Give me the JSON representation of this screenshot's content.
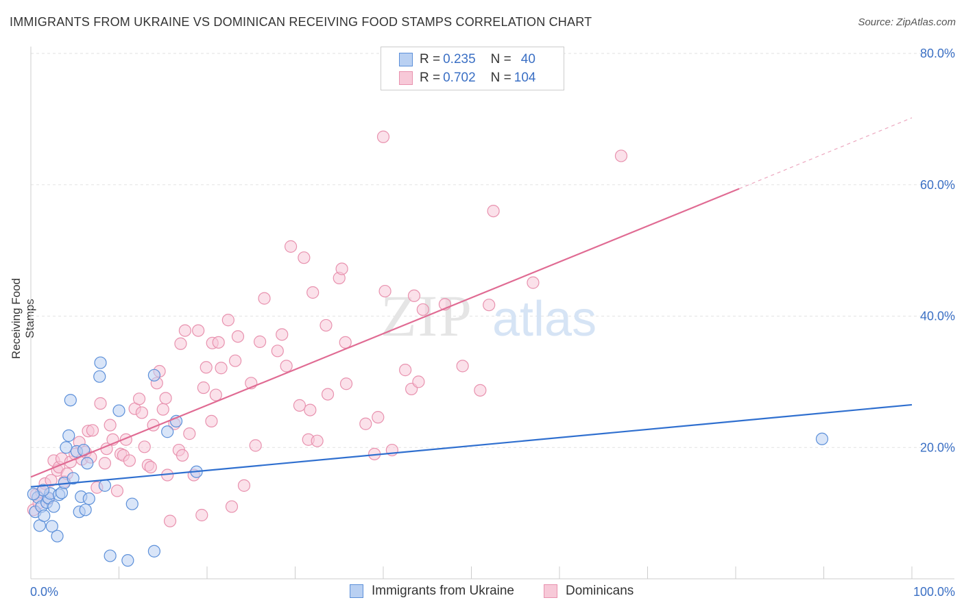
{
  "header": {
    "title": "IMMIGRANTS FROM UKRAINE VS DOMINICAN RECEIVING FOOD STAMPS CORRELATION CHART",
    "source": "Source: ZipAtlas.com"
  },
  "watermark": {
    "zip": "ZIP",
    "atlas": "atlas"
  },
  "colors": {
    "blue": "#5b8fd9",
    "blue_fill": "#b9d0f2",
    "blue_line": "#2f6fcf",
    "pink": "#e891ae",
    "pink_fill": "#f7c9d8",
    "pink_line": "#e06b93",
    "tick_text": "#3a6fc4"
  },
  "legend": {
    "rows": [
      {
        "r_label": "R = ",
        "r_value": "0.235",
        "n_label": "N = ",
        "n_value": "40"
      },
      {
        "r_label": "R = ",
        "r_value": "0.702",
        "n_label": "N = ",
        "n_value": "104"
      }
    ]
  },
  "bottom_legend": {
    "items": [
      "Immigrants from Ukraine",
      "Dominicans"
    ]
  },
  "chart_data": {
    "type": "scatter",
    "title": "IMMIGRANTS FROM UKRAINE VS DOMINICAN RECEIVING FOOD STAMPS CORRELATION CHART",
    "xlabel": "",
    "ylabel": "Receiving Food Stamps",
    "xlim": [
      0,
      100
    ],
    "ylim": [
      0,
      80
    ],
    "x_tick_labels": [
      "0.0%",
      "100.0%"
    ],
    "y_tick_labels": [
      "20.0%",
      "40.0%",
      "60.0%",
      "80.0%"
    ],
    "y_ticks": [
      20,
      40,
      60,
      80
    ],
    "series": [
      {
        "name": "Immigrants from Ukraine",
        "r": 0.235,
        "n": 40,
        "trend": {
          "x0": 0,
          "y0": 14.0,
          "x1": 100,
          "y1": 26.5,
          "dashed_from": null
        },
        "points": [
          [
            0.5,
            10.2
          ],
          [
            0.8,
            12.4
          ],
          [
            1,
            8.1
          ],
          [
            1.2,
            11
          ],
          [
            1.5,
            9.6
          ],
          [
            1.8,
            11.6
          ],
          [
            2,
            12.3
          ],
          [
            2.2,
            13
          ],
          [
            2.4,
            8
          ],
          [
            2.6,
            11
          ],
          [
            3,
            6.5
          ],
          [
            3.2,
            12.8
          ],
          [
            3.5,
            13.1
          ],
          [
            3.8,
            14.6
          ],
          [
            4,
            20
          ],
          [
            4.3,
            21.8
          ],
          [
            4.5,
            27.2
          ],
          [
            4.8,
            15.3
          ],
          [
            5.2,
            19.4
          ],
          [
            5.5,
            10.2
          ],
          [
            5.7,
            12.5
          ],
          [
            6,
            19.6
          ],
          [
            6.2,
            10.5
          ],
          [
            6.4,
            17.6
          ],
          [
            6.6,
            12.2
          ],
          [
            7.8,
            30.8
          ],
          [
            7.9,
            32.9
          ],
          [
            8.4,
            14.2
          ],
          [
            9,
            3.5
          ],
          [
            10,
            25.6
          ],
          [
            11,
            2.8
          ],
          [
            11.5,
            11.4
          ],
          [
            14,
            31
          ],
          [
            14,
            4.2
          ],
          [
            15.5,
            22.4
          ],
          [
            16.5,
            24
          ],
          [
            18.8,
            16.3
          ],
          [
            1.4,
            13.5
          ],
          [
            0.3,
            12.9
          ],
          [
            89.8,
            21.3
          ]
        ]
      },
      {
        "name": "Dominicans",
        "r": 0.702,
        "n": 104,
        "trend": {
          "x0": 0,
          "y0": 15.5,
          "x1": 80.4,
          "y1": 59.4,
          "dashed_to_x": 100,
          "dashed_to_y": 70.2
        },
        "points": [
          [
            0.3,
            10.5
          ],
          [
            0.6,
            12.8
          ],
          [
            0.9,
            11.5
          ],
          [
            1.2,
            13.2
          ],
          [
            1.6,
            14.5
          ],
          [
            2,
            12.2
          ],
          [
            2.3,
            15
          ],
          [
            2.6,
            18
          ],
          [
            3,
            16.5
          ],
          [
            3.2,
            17
          ],
          [
            3.5,
            18.3
          ],
          [
            3.8,
            14.8
          ],
          [
            4.1,
            16
          ],
          [
            4.5,
            17.8
          ],
          [
            5,
            19
          ],
          [
            5.5,
            20.8
          ],
          [
            5.8,
            18.2
          ],
          [
            6.2,
            19.3
          ],
          [
            6.5,
            22.5
          ],
          [
            6.8,
            18.5
          ],
          [
            7,
            22.6
          ],
          [
            7.5,
            13.9
          ],
          [
            7.9,
            26.7
          ],
          [
            8.4,
            17.6
          ],
          [
            8.6,
            19.8
          ],
          [
            9,
            23.4
          ],
          [
            9.3,
            21.2
          ],
          [
            9.8,
            13.4
          ],
          [
            10.2,
            19
          ],
          [
            10.5,
            18.8
          ],
          [
            10.8,
            21.2
          ],
          [
            11.2,
            18
          ],
          [
            11.8,
            25.9
          ],
          [
            12.3,
            27.4
          ],
          [
            12.6,
            25.3
          ],
          [
            12.9,
            20.1
          ],
          [
            13.3,
            17.3
          ],
          [
            13.6,
            17
          ],
          [
            13.9,
            23.4
          ],
          [
            14.3,
            29.8
          ],
          [
            14.6,
            31.6
          ],
          [
            15,
            25.8
          ],
          [
            15.3,
            27.5
          ],
          [
            15.5,
            15.8
          ],
          [
            15.8,
            8.8
          ],
          [
            16.3,
            23.6
          ],
          [
            16.8,
            19.6
          ],
          [
            17,
            35.8
          ],
          [
            17.2,
            18.8
          ],
          [
            17.5,
            37.8
          ],
          [
            18,
            22.1
          ],
          [
            18.5,
            15.8
          ],
          [
            19,
            37.8
          ],
          [
            19.4,
            9.7
          ],
          [
            19.6,
            29.1
          ],
          [
            19.9,
            32.2
          ],
          [
            20.6,
            35.9
          ],
          [
            21,
            28
          ],
          [
            21.3,
            36
          ],
          [
            21.6,
            32.1
          ],
          [
            22.4,
            39.4
          ],
          [
            22.8,
            11
          ],
          [
            23.2,
            33.2
          ],
          [
            23.5,
            36.9
          ],
          [
            24.2,
            14.2
          ],
          [
            25,
            29.8
          ],
          [
            25.5,
            20.3
          ],
          [
            26,
            36.1
          ],
          [
            26.5,
            42.7
          ],
          [
            28,
            34.7
          ],
          [
            28.5,
            37.2
          ],
          [
            29,
            32.4
          ],
          [
            29.5,
            50.6
          ],
          [
            30.5,
            26.4
          ],
          [
            31,
            48.9
          ],
          [
            31.5,
            21.2
          ],
          [
            31.7,
            25.7
          ],
          [
            32,
            43.6
          ],
          [
            32.5,
            21
          ],
          [
            33.5,
            38.6
          ],
          [
            33.7,
            28.1
          ],
          [
            35,
            45.8
          ],
          [
            35.3,
            47.2
          ],
          [
            35.7,
            36
          ],
          [
            38,
            23.6
          ],
          [
            39,
            19
          ],
          [
            39.4,
            24.6
          ],
          [
            40,
            67.3
          ],
          [
            40.2,
            43.8
          ],
          [
            41,
            19.6
          ],
          [
            42.5,
            31.8
          ],
          [
            43.2,
            28.9
          ],
          [
            43.5,
            43.1
          ],
          [
            44,
            30
          ],
          [
            44.5,
            41
          ],
          [
            47,
            41.8
          ],
          [
            49,
            32.4
          ],
          [
            51,
            28.7
          ],
          [
            52,
            41.7
          ],
          [
            52.5,
            56
          ],
          [
            57,
            45.1
          ],
          [
            67,
            64.4
          ],
          [
            35.8,
            29.7
          ],
          [
            20.5,
            24
          ]
        ]
      }
    ]
  }
}
